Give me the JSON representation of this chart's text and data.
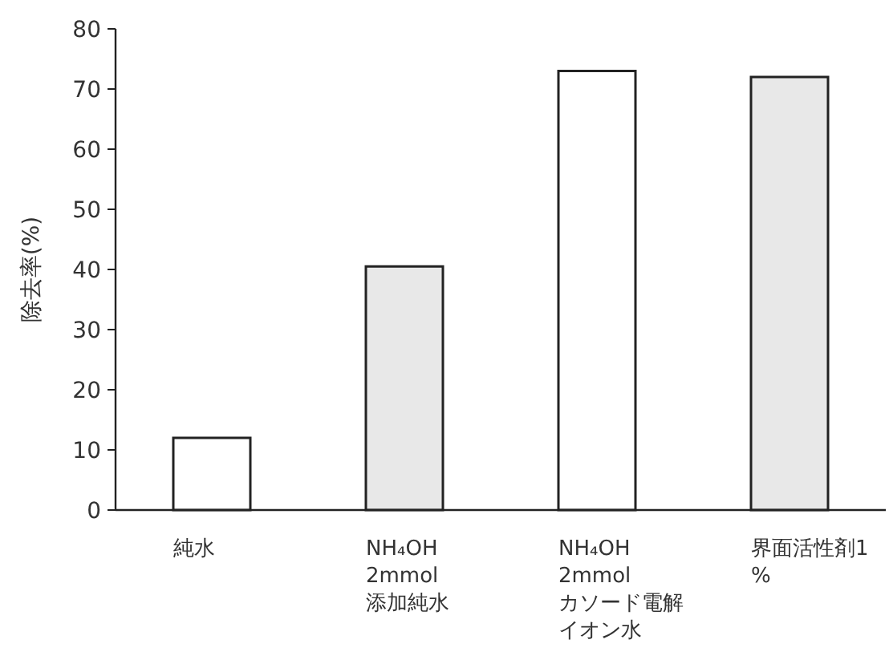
{
  "chart_data": {
    "type": "bar",
    "ylabel": "除去率(%)",
    "categories": [
      "純水",
      "NH₄OH\n2mmol\n添加純水",
      "NH₄OH\n2mmol\nカソード電解イオン水",
      "界面活性剤1%"
    ],
    "values": [
      12,
      40.5,
      73,
      72
    ],
    "colors": [
      "#ffffff",
      "#e8e8e8",
      "#ffffff",
      "#e8e8e8"
    ],
    "ylim": [
      0,
      80
    ],
    "yticks": [
      0,
      10,
      20,
      30,
      40,
      50,
      60,
      70,
      80
    ],
    "grid": false
  }
}
